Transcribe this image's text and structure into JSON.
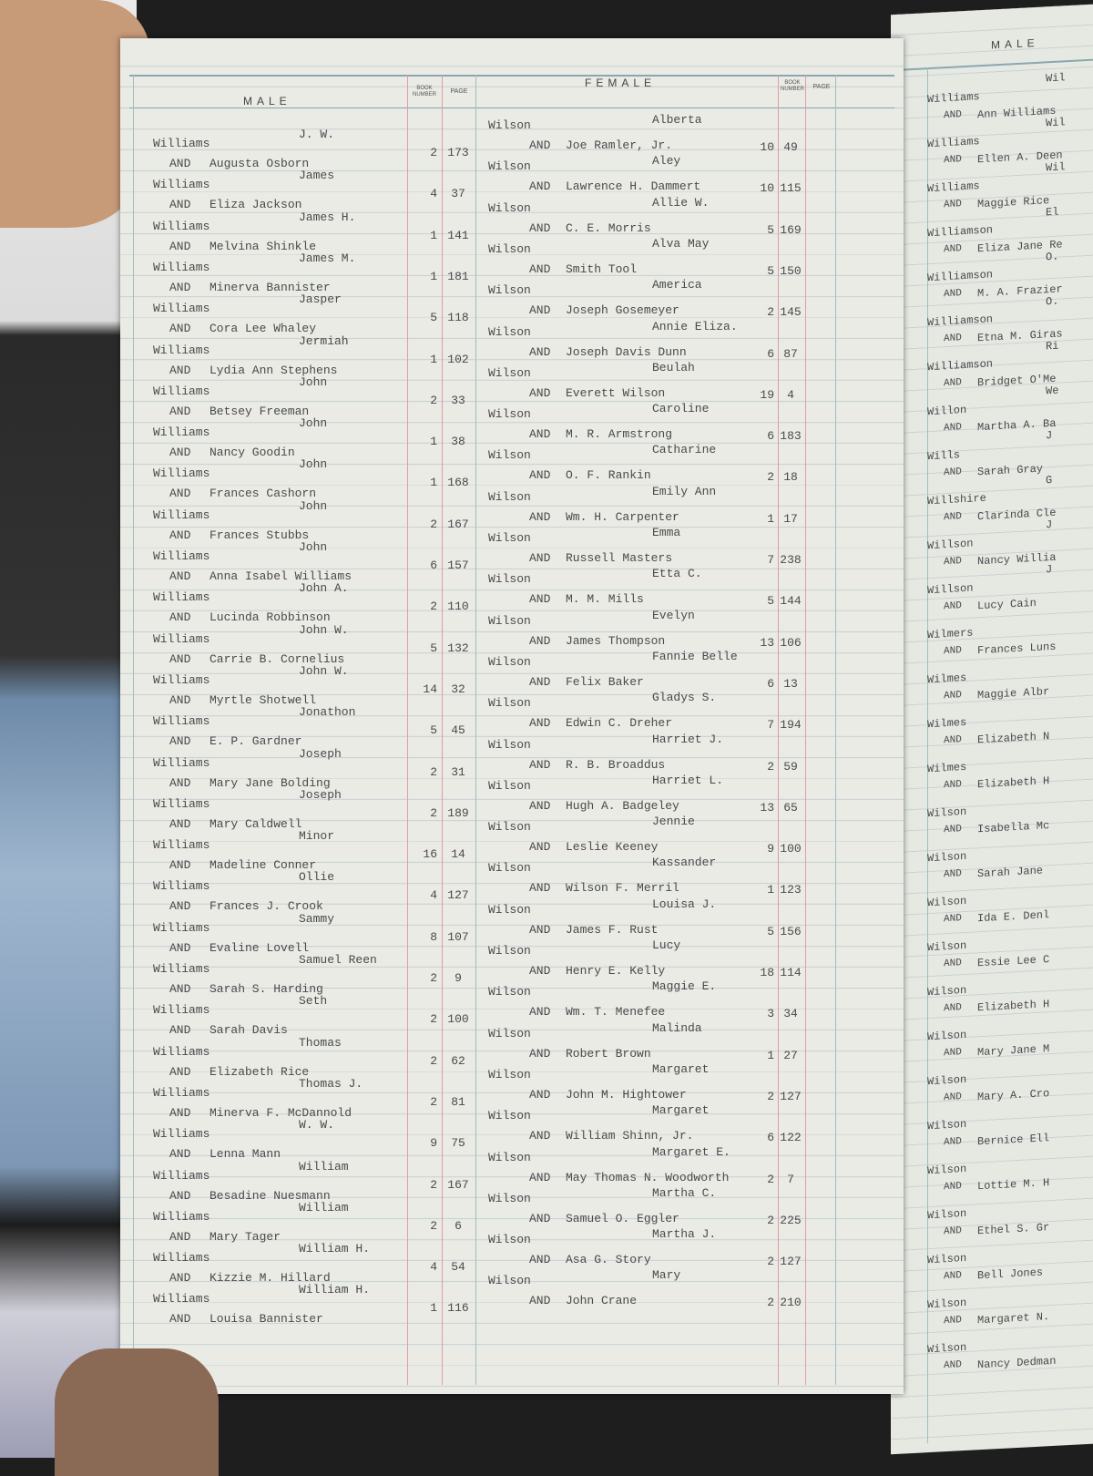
{
  "left_page": {
    "male_header": "MALE",
    "female_header": "FEMALE",
    "book_header": "BOOK NUMBER",
    "page_header": "PAGE",
    "and_label": "AND",
    "male_surname": "Williams",
    "female_surname": "Wilson",
    "male_entries": [
      {
        "given": "J. W.",
        "spouse": "Augusta Osborn",
        "book": "2",
        "page": "173"
      },
      {
        "given": "James",
        "spouse": "Eliza Jackson",
        "book": "4",
        "page": "37"
      },
      {
        "given": "James H.",
        "spouse": "Melvina Shinkle",
        "book": "1",
        "page": "141"
      },
      {
        "given": "James M.",
        "spouse": "Minerva Bannister",
        "book": "1",
        "page": "181"
      },
      {
        "given": "Jasper",
        "spouse": "Cora Lee Whaley",
        "book": "5",
        "page": "118"
      },
      {
        "given": "Jermiah",
        "spouse": "Lydia Ann Stephens",
        "book": "1",
        "page": "102"
      },
      {
        "given": "John",
        "spouse": "Betsey Freeman",
        "book": "2",
        "page": "33"
      },
      {
        "given": "John",
        "spouse": "Nancy Goodin",
        "book": "1",
        "page": "38"
      },
      {
        "given": "John",
        "spouse": "Frances Cashorn",
        "book": "1",
        "page": "168"
      },
      {
        "given": "John",
        "spouse": "Frances Stubbs",
        "book": "2",
        "page": "167"
      },
      {
        "given": "John",
        "spouse": "Anna Isabel Williams",
        "book": "6",
        "page": "157"
      },
      {
        "given": "John A.",
        "spouse": "Lucinda Robbinson",
        "book": "2",
        "page": "110"
      },
      {
        "given": "John W.",
        "spouse": "Carrie B. Cornelius",
        "book": "5",
        "page": "132"
      },
      {
        "given": "John W.",
        "spouse": "Myrtle Shotwell",
        "book": "14",
        "page": "32"
      },
      {
        "given": "Jonathon",
        "spouse": "E. P. Gardner",
        "book": "5",
        "page": "45"
      },
      {
        "given": "Joseph",
        "spouse": "Mary Jane Bolding",
        "book": "2",
        "page": "31"
      },
      {
        "given": "Joseph",
        "spouse": "Mary Caldwell",
        "book": "2",
        "page": "189"
      },
      {
        "given": "Minor",
        "spouse": "Madeline Conner",
        "book": "16",
        "page": "14"
      },
      {
        "given": "Ollie",
        "spouse": "Frances J. Crook",
        "book": "4",
        "page": "127"
      },
      {
        "given": "Sammy",
        "spouse": "Evaline Lovell",
        "book": "8",
        "page": "107"
      },
      {
        "given": "Samuel Reen",
        "spouse": "Sarah S. Harding",
        "book": "2",
        "page": "9"
      },
      {
        "given": "Seth",
        "spouse": "Sarah Davis",
        "book": "2",
        "page": "100"
      },
      {
        "given": "Thomas",
        "spouse": "Elizabeth Rice",
        "book": "2",
        "page": "62"
      },
      {
        "given": "Thomas J.",
        "spouse": "Minerva F. McDannold",
        "book": "2",
        "page": "81"
      },
      {
        "given": "W. W.",
        "spouse": "Lenna Mann",
        "book": "9",
        "page": "75"
      },
      {
        "given": "William",
        "spouse": "Besadine Nuesmann",
        "book": "2",
        "page": "167"
      },
      {
        "given": "William",
        "spouse": "Mary Tager",
        "book": "2",
        "page": "6"
      },
      {
        "given": "William H.",
        "spouse": "Kizzie M. Hillard",
        "book": "4",
        "page": "54"
      },
      {
        "given": "William H.",
        "spouse": "Louisa Bannister",
        "book": "1",
        "page": "116"
      }
    ],
    "female_entries": [
      {
        "given": "Alberta",
        "spouse": "Joe Ramler, Jr.",
        "book": "10",
        "page": "49"
      },
      {
        "given": "Aley",
        "spouse": "Lawrence H. Dammert",
        "book": "10",
        "page": "115"
      },
      {
        "given": "Allie W.",
        "spouse": "C. E. Morris",
        "book": "5",
        "page": "169"
      },
      {
        "given": "Alva May",
        "spouse": "Smith Tool",
        "book": "5",
        "page": "150"
      },
      {
        "given": "America",
        "spouse": "Joseph Gosemeyer",
        "book": "2",
        "page": "145"
      },
      {
        "given": "Annie Eliza.",
        "spouse": "Joseph Davis Dunn",
        "book": "6",
        "page": "87"
      },
      {
        "given": "Beulah",
        "spouse": "Everett Wilson",
        "book": "19",
        "page": "4"
      },
      {
        "given": "Caroline",
        "spouse": "M. R. Armstrong",
        "book": "6",
        "page": "183"
      },
      {
        "given": "Catharine",
        "spouse": "O. F. Rankin",
        "book": "2",
        "page": "18"
      },
      {
        "given": "Emily Ann",
        "spouse": "Wm. H. Carpenter",
        "book": "1",
        "page": "17"
      },
      {
        "given": "Emma",
        "spouse": "Russell Masters",
        "book": "7",
        "page": "238"
      },
      {
        "given": "Etta C.",
        "spouse": "M. M. Mills",
        "book": "5",
        "page": "144"
      },
      {
        "given": "Evelyn",
        "spouse": "James Thompson",
        "book": "13",
        "page": "106"
      },
      {
        "given": "Fannie Belle",
        "spouse": "Felix Baker",
        "book": "6",
        "page": "13"
      },
      {
        "given": "Gladys S.",
        "spouse": "Edwin C. Dreher",
        "book": "7",
        "page": "194"
      },
      {
        "given": "Harriet J.",
        "spouse": "R. B. Broaddus",
        "book": "2",
        "page": "59"
      },
      {
        "given": "Harriet L.",
        "spouse": "Hugh A. Badgeley",
        "book": "13",
        "page": "65"
      },
      {
        "given": "Jennie",
        "spouse": "Leslie Keeney",
        "book": "9",
        "page": "100"
      },
      {
        "given": "Kassander",
        "spouse": "Wilson F. Merril",
        "book": "1",
        "page": "123"
      },
      {
        "given": "Louisa J.",
        "spouse": "James F. Rust",
        "book": "5",
        "page": "156"
      },
      {
        "given": "Lucy",
        "spouse": "Henry E. Kelly",
        "book": "18",
        "page": "114"
      },
      {
        "given": "Maggie E.",
        "spouse": "Wm. T. Menefee",
        "book": "3",
        "page": "34"
      },
      {
        "given": "Malinda",
        "spouse": "Robert Brown",
        "book": "1",
        "page": "27"
      },
      {
        "given": "Margaret",
        "spouse": "John M. Hightower",
        "book": "2",
        "page": "127"
      },
      {
        "given": "Margaret",
        "spouse": "William Shinn, Jr.",
        "book": "6",
        "page": "122"
      },
      {
        "given": "Margaret E.",
        "spouse": "May Thomas N. Woodworth",
        "book": "2",
        "page": "7"
      },
      {
        "given": "Martha C.",
        "spouse": "Samuel O. Eggler",
        "book": "2",
        "page": "225"
      },
      {
        "given": "Martha J.",
        "spouse": "Asa G. Story",
        "book": "2",
        "page": "127"
      },
      {
        "given": "Mary",
        "spouse": "John Crane",
        "book": "2",
        "page": "210"
      }
    ]
  },
  "right_page": {
    "male_header": "MALE",
    "entries": [
      {
        "surname": "Williams",
        "given": "Wil",
        "spouse": "Ann Williams"
      },
      {
        "surname": "Williams",
        "given": "Wil",
        "spouse": "Ellen A. Deen"
      },
      {
        "surname": "Williams",
        "given": "Wil",
        "spouse": "Maggie Rice"
      },
      {
        "surname": "Williamson",
        "given": "El",
        "spouse": "Eliza Jane Re"
      },
      {
        "surname": "Williamson",
        "given": "O.",
        "spouse": "M. A. Frazier"
      },
      {
        "surname": "Williamson",
        "given": "O.",
        "spouse": "Etna M. Giras"
      },
      {
        "surname": "Williamson",
        "given": "Ri",
        "spouse": "Bridget O'Me"
      },
      {
        "surname": "Willon",
        "given": "We",
        "spouse": "Martha A. Ba"
      },
      {
        "surname": "Wills",
        "given": "J",
        "spouse": "Sarah Gray"
      },
      {
        "surname": "Willshire",
        "given": "G",
        "spouse": "Clarinda Cle"
      },
      {
        "surname": "Willson",
        "given": "J",
        "spouse": "Nancy Willia"
      },
      {
        "surname": "Willson",
        "given": "J",
        "spouse": "Lucy Cain"
      },
      {
        "surname": "Wilmers",
        "given": "",
        "spouse": "Frances Luns"
      },
      {
        "surname": "Wilmes",
        "given": "",
        "spouse": "Maggie Albr"
      },
      {
        "surname": "Wilmes",
        "given": "",
        "spouse": "Elizabeth N"
      },
      {
        "surname": "Wilmes",
        "given": "",
        "spouse": "Elizabeth H"
      },
      {
        "surname": "Wilson",
        "given": "",
        "spouse": "Isabella Mc"
      },
      {
        "surname": "Wilson",
        "given": "",
        "spouse": "Sarah Jane"
      },
      {
        "surname": "Wilson",
        "given": "",
        "spouse": "Ida E. Denl"
      },
      {
        "surname": "Wilson",
        "given": "",
        "spouse": "Essie Lee C"
      },
      {
        "surname": "Wilson",
        "given": "",
        "spouse": "Elizabeth H"
      },
      {
        "surname": "Wilson",
        "given": "",
        "spouse": "Mary Jane M"
      },
      {
        "surname": "Wilson",
        "given": "",
        "spouse": "Mary A. Cro"
      },
      {
        "surname": "Wilson",
        "given": "",
        "spouse": "Bernice Ell"
      },
      {
        "surname": "Wilson",
        "given": "",
        "spouse": "Lottie M. H"
      },
      {
        "surname": "Wilson",
        "given": "",
        "spouse": "Ethel S. Gr"
      },
      {
        "surname": "Wilson",
        "given": "",
        "spouse": "Bell Jones"
      },
      {
        "surname": "Wilson",
        "given": "",
        "spouse": "Margaret N."
      },
      {
        "surname": "Wilson",
        "given": "",
        "spouse": "Nancy Dedman"
      }
    ]
  },
  "colors": {
    "paper": "#e9ebe4",
    "red_rule": "#e39aa8",
    "blue_rule": "#9fbfc0",
    "ink": "#4a4a4a"
  }
}
